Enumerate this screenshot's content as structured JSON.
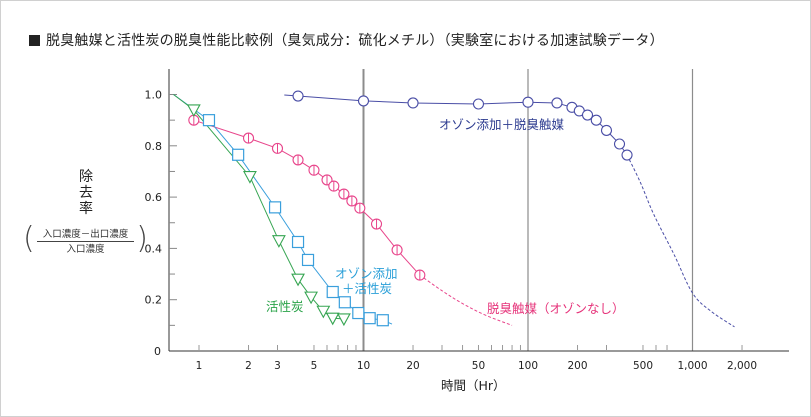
{
  "title": "脱臭触媒と活性炭の脱臭性能比較例（臭気成分：硫化メチル）（実験室における加速試験データ）",
  "y_axis": {
    "label": "除去率",
    "formula_numerator": "入口濃度－出口濃度",
    "formula_denominator": "入口濃度"
  },
  "chart_data": {
    "type": "line",
    "title": "脱臭触媒と活性炭の脱臭性能比較例（臭気成分：硫化メチル）（実験室における加速試験データ）",
    "xlabel": "時間（Hr）",
    "ylabel": "除去率",
    "x_scale": "log",
    "xlim": [
      0.7,
      3500
    ],
    "ylim": [
      0,
      1.0
    ],
    "x_ticks": [
      1,
      2,
      3,
      5,
      10,
      20,
      50,
      100,
      200,
      500,
      1000,
      2000
    ],
    "x_tick_labels": [
      "1",
      "2",
      "3",
      "5",
      "10",
      "20",
      "50",
      "100",
      "200",
      "500",
      "1,000",
      "2,000"
    ],
    "y_ticks": [
      0,
      0.2,
      0.4,
      0.6,
      0.8,
      1.0
    ],
    "y_tick_labels": [
      "0",
      "0.2",
      "0.4",
      "0.6",
      "0.8",
      "1.0"
    ],
    "vertical_gridlines": [
      10,
      100,
      1000
    ],
    "series": [
      {
        "name": "オゾン添加＋脱臭触媒",
        "color": "#4a4ea6",
        "marker": "circle",
        "line_start": [
          3.3,
          0.998
        ],
        "x": [
          4,
          10,
          20,
          50,
          100,
          150,
          185,
          205,
          230,
          260,
          300,
          360,
          400
        ],
        "y": [
          0.994,
          0.975,
          0.967,
          0.963,
          0.97,
          0.967,
          0.95,
          0.936,
          0.92,
          0.9,
          0.86,
          0.807,
          0.764
        ],
        "extrapolation": {
          "x": [
            400,
            480,
            580,
            770,
            1000,
            1290,
            1800
          ],
          "y": [
            0.764,
            0.66,
            0.534,
            0.378,
            0.226,
            0.156,
            0.094
          ]
        }
      },
      {
        "name": "脱臭触媒（オゾンなし）",
        "color": "#e8458b",
        "marker": "circle-bar",
        "x": [
          0.93,
          2,
          3,
          4,
          5,
          6,
          6.6,
          7.6,
          8.5,
          9.5,
          12,
          16,
          22
        ],
        "y": [
          0.9,
          0.83,
          0.79,
          0.745,
          0.705,
          0.667,
          0.643,
          0.612,
          0.585,
          0.557,
          0.495,
          0.394,
          0.296
        ],
        "extrapolation": {
          "x": [
            22,
            30,
            40,
            55,
            80
          ],
          "y": [
            0.296,
            0.235,
            0.185,
            0.14,
            0.1
          ]
        }
      },
      {
        "name": "オゾン添加＋活性炭",
        "color": "#3a9fdc",
        "marker": "square",
        "line_start": [
          0.7,
          1.0
        ],
        "line_end": [
          14.9,
          0.105
        ],
        "x": [
          1.15,
          1.73,
          2.9,
          4.0,
          4.6,
          6.5,
          7.7,
          9.3,
          10.9,
          13.1
        ],
        "y": [
          0.9,
          0.765,
          0.56,
          0.425,
          0.355,
          0.23,
          0.19,
          0.148,
          0.128,
          0.12
        ]
      },
      {
        "name": "活性炭",
        "color": "#36a552",
        "marker": "triangle-down",
        "line_start": [
          0.7,
          1.0
        ],
        "x": [
          0.93,
          2.04,
          3.06,
          4.0,
          4.8,
          5.7,
          6.5,
          7.6
        ],
        "y": [
          0.94,
          0.68,
          0.43,
          0.28,
          0.21,
          0.155,
          0.128,
          0.125
        ]
      }
    ]
  },
  "annotations": {
    "ozone_catalyst": "オゾン添加＋脱臭触媒",
    "catalyst_no_ozone": "脱臭触媒（オゾンなし）",
    "ozone_carbon_1": "オゾン添加",
    "ozone_carbon_2": "＋活性炭",
    "carbon": "活性炭"
  }
}
